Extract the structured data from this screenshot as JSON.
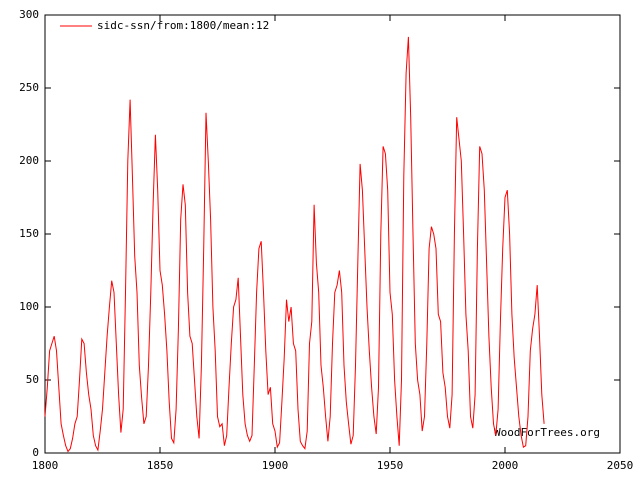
{
  "chart_data": {
    "type": "line",
    "series": [
      {
        "name": "sidc-ssn/from:1800/mean:12",
        "color": "#ff0000",
        "x": [
          1800,
          1801,
          1802,
          1803,
          1804,
          1805,
          1806,
          1807,
          1808,
          1809,
          1810,
          1811,
          1812,
          1813,
          1814,
          1815,
          1816,
          1817,
          1818,
          1819,
          1820,
          1821,
          1822,
          1823,
          1824,
          1825,
          1826,
          1827,
          1828,
          1829,
          1830,
          1831,
          1832,
          1833,
          1834,
          1835,
          1836,
          1837,
          1838,
          1839,
          1840,
          1841,
          1842,
          1843,
          1844,
          1845,
          1846,
          1847,
          1848,
          1849,
          1850,
          1851,
          1852,
          1853,
          1854,
          1855,
          1856,
          1857,
          1858,
          1859,
          1860,
          1861,
          1862,
          1863,
          1864,
          1865,
          1866,
          1867,
          1868,
          1869,
          1870,
          1871,
          1872,
          1873,
          1874,
          1875,
          1876,
          1877,
          1878,
          1879,
          1880,
          1881,
          1882,
          1883,
          1884,
          1885,
          1886,
          1887,
          1888,
          1889,
          1890,
          1891,
          1892,
          1893,
          1894,
          1895,
          1896,
          1897,
          1898,
          1899,
          1900,
          1901,
          1902,
          1903,
          1904,
          1905,
          1906,
          1907,
          1908,
          1909,
          1910,
          1911,
          1912,
          1913,
          1914,
          1915,
          1916,
          1917,
          1918,
          1919,
          1920,
          1921,
          1922,
          1923,
          1924,
          1925,
          1926,
          1927,
          1928,
          1929,
          1930,
          1931,
          1932,
          1933,
          1934,
          1935,
          1936,
          1937,
          1938,
          1939,
          1940,
          1941,
          1942,
          1943,
          1944,
          1945,
          1946,
          1947,
          1948,
          1949,
          1950,
          1951,
          1952,
          1953,
          1954,
          1955,
          1956,
          1957,
          1958,
          1959,
          1960,
          1961,
          1962,
          1963,
          1964,
          1965,
          1966,
          1967,
          1968,
          1969,
          1970,
          1971,
          1972,
          1973,
          1974,
          1975,
          1976,
          1977,
          1978,
          1979,
          1980,
          1981,
          1982,
          1983,
          1984,
          1985,
          1986,
          1987,
          1988,
          1989,
          1990,
          1991,
          1992,
          1993,
          1994,
          1995,
          1996,
          1997,
          1998,
          1999,
          2000,
          2001,
          2002,
          2003,
          2004,
          2005,
          2006,
          2007,
          2008,
          2009,
          2010,
          2011,
          2012,
          2013,
          2014,
          2015,
          2016,
          2017
        ],
        "values": [
          25,
          45,
          70,
          75,
          80,
          70,
          45,
          20,
          12,
          5,
          1,
          3,
          10,
          20,
          25,
          50,
          78,
          75,
          55,
          40,
          30,
          12,
          5,
          2,
          15,
          30,
          55,
          80,
          100,
          118,
          110,
          75,
          40,
          14,
          30,
          110,
          200,
          242,
          190,
          135,
          110,
          60,
          38,
          20,
          25,
          60,
          110,
          170,
          218,
          180,
          125,
          115,
          95,
          70,
          35,
          10,
          7,
          30,
          85,
          160,
          184,
          170,
          110,
          80,
          75,
          50,
          25,
          10,
          60,
          140,
          233,
          200,
          160,
          100,
          70,
          25,
          18,
          20,
          5,
          12,
          45,
          75,
          100,
          105,
          120,
          80,
          40,
          20,
          12,
          8,
          12,
          60,
          110,
          140,
          145,
          110,
          70,
          40,
          45,
          20,
          15,
          4,
          7,
          35,
          65,
          105,
          90,
          100,
          75,
          70,
          30,
          8,
          5,
          3,
          15,
          75,
          90,
          170,
          130,
          110,
          60,
          45,
          25,
          8,
          25,
          75,
          110,
          115,
          125,
          110,
          60,
          35,
          20,
          6,
          12,
          60,
          130,
          198,
          180,
          140,
          100,
          70,
          45,
          25,
          13,
          45,
          150,
          210,
          205,
          180,
          110,
          95,
          50,
          25,
          5,
          50,
          190,
          260,
          285,
          230,
          150,
          75,
          50,
          40,
          15,
          25,
          75,
          140,
          155,
          150,
          140,
          95,
          90,
          55,
          45,
          25,
          17,
          40,
          150,
          230,
          215,
          200,
          150,
          95,
          70,
          25,
          17,
          40,
          140,
          210,
          205,
          180,
          130,
          80,
          45,
          20,
          12,
          30,
          90,
          140,
          175,
          180,
          150,
          95,
          65,
          45,
          25,
          12,
          4,
          5,
          25,
          70,
          85,
          95,
          115,
          80,
          40,
          20
        ]
      }
    ],
    "xlim": [
      1800,
      2050
    ],
    "xticks": [
      1800,
      1850,
      1900,
      1950,
      2000,
      2050
    ],
    "ylim": [
      0,
      300
    ],
    "yticks": [
      0,
      50,
      100,
      150,
      200,
      250,
      300
    ],
    "legend": "top-left",
    "watermark": "WoodForTrees.org"
  }
}
